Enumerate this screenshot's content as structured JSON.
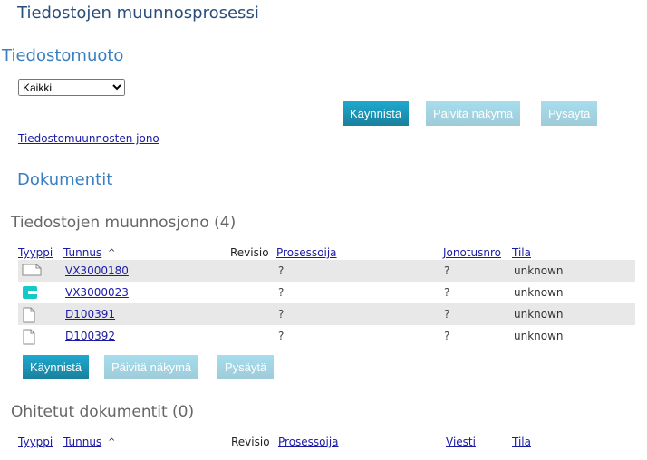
{
  "title": "Tiedostojen muunnosprosessi",
  "format_heading": "Tiedostomuoto",
  "format_select": "Kaikki",
  "buttons": {
    "start": "Käynnistä",
    "refresh": "Päivitä näkymä",
    "stop": "Pysäytä"
  },
  "queue_link": "Tiedostomuunnosten jono",
  "documents_heading": "Dokumentit",
  "queue": {
    "heading": "Tiedostojen muunnosjono (4)",
    "columns": {
      "type": "Tyyppi",
      "id": "Tunnus",
      "sort": "^",
      "revision": "Revisio",
      "processor": "Prosessoija",
      "queue_no": "Jonotusnro",
      "state": "Tila"
    },
    "rows": [
      {
        "icon": "blank-doc-landscape-icon",
        "id": "VX3000180",
        "processor": "?",
        "queue_no": "?",
        "state": "unknown"
      },
      {
        "icon": "teal-c-file-icon",
        "id": "VX3000023",
        "processor": "?",
        "queue_no": "?",
        "state": "unknown"
      },
      {
        "icon": "document-icon",
        "id": "D100391",
        "processor": "?",
        "queue_no": "?",
        "state": "unknown"
      },
      {
        "icon": "document-icon",
        "id": "D100392",
        "processor": "?",
        "queue_no": "?",
        "state": "unknown"
      }
    ]
  },
  "skipped": {
    "heading": "Ohitetut dokumentit (0)",
    "columns": {
      "type": "Tyyppi",
      "id": "Tunnus",
      "sort": "^",
      "revision": "Revisio",
      "processor": "Prosessoija",
      "message": "Viesti",
      "state": "Tila"
    }
  },
  "colors": {
    "primary": "#1a8fb3",
    "disabled": "#a3d4e4",
    "heading": "#3a7fc0"
  }
}
